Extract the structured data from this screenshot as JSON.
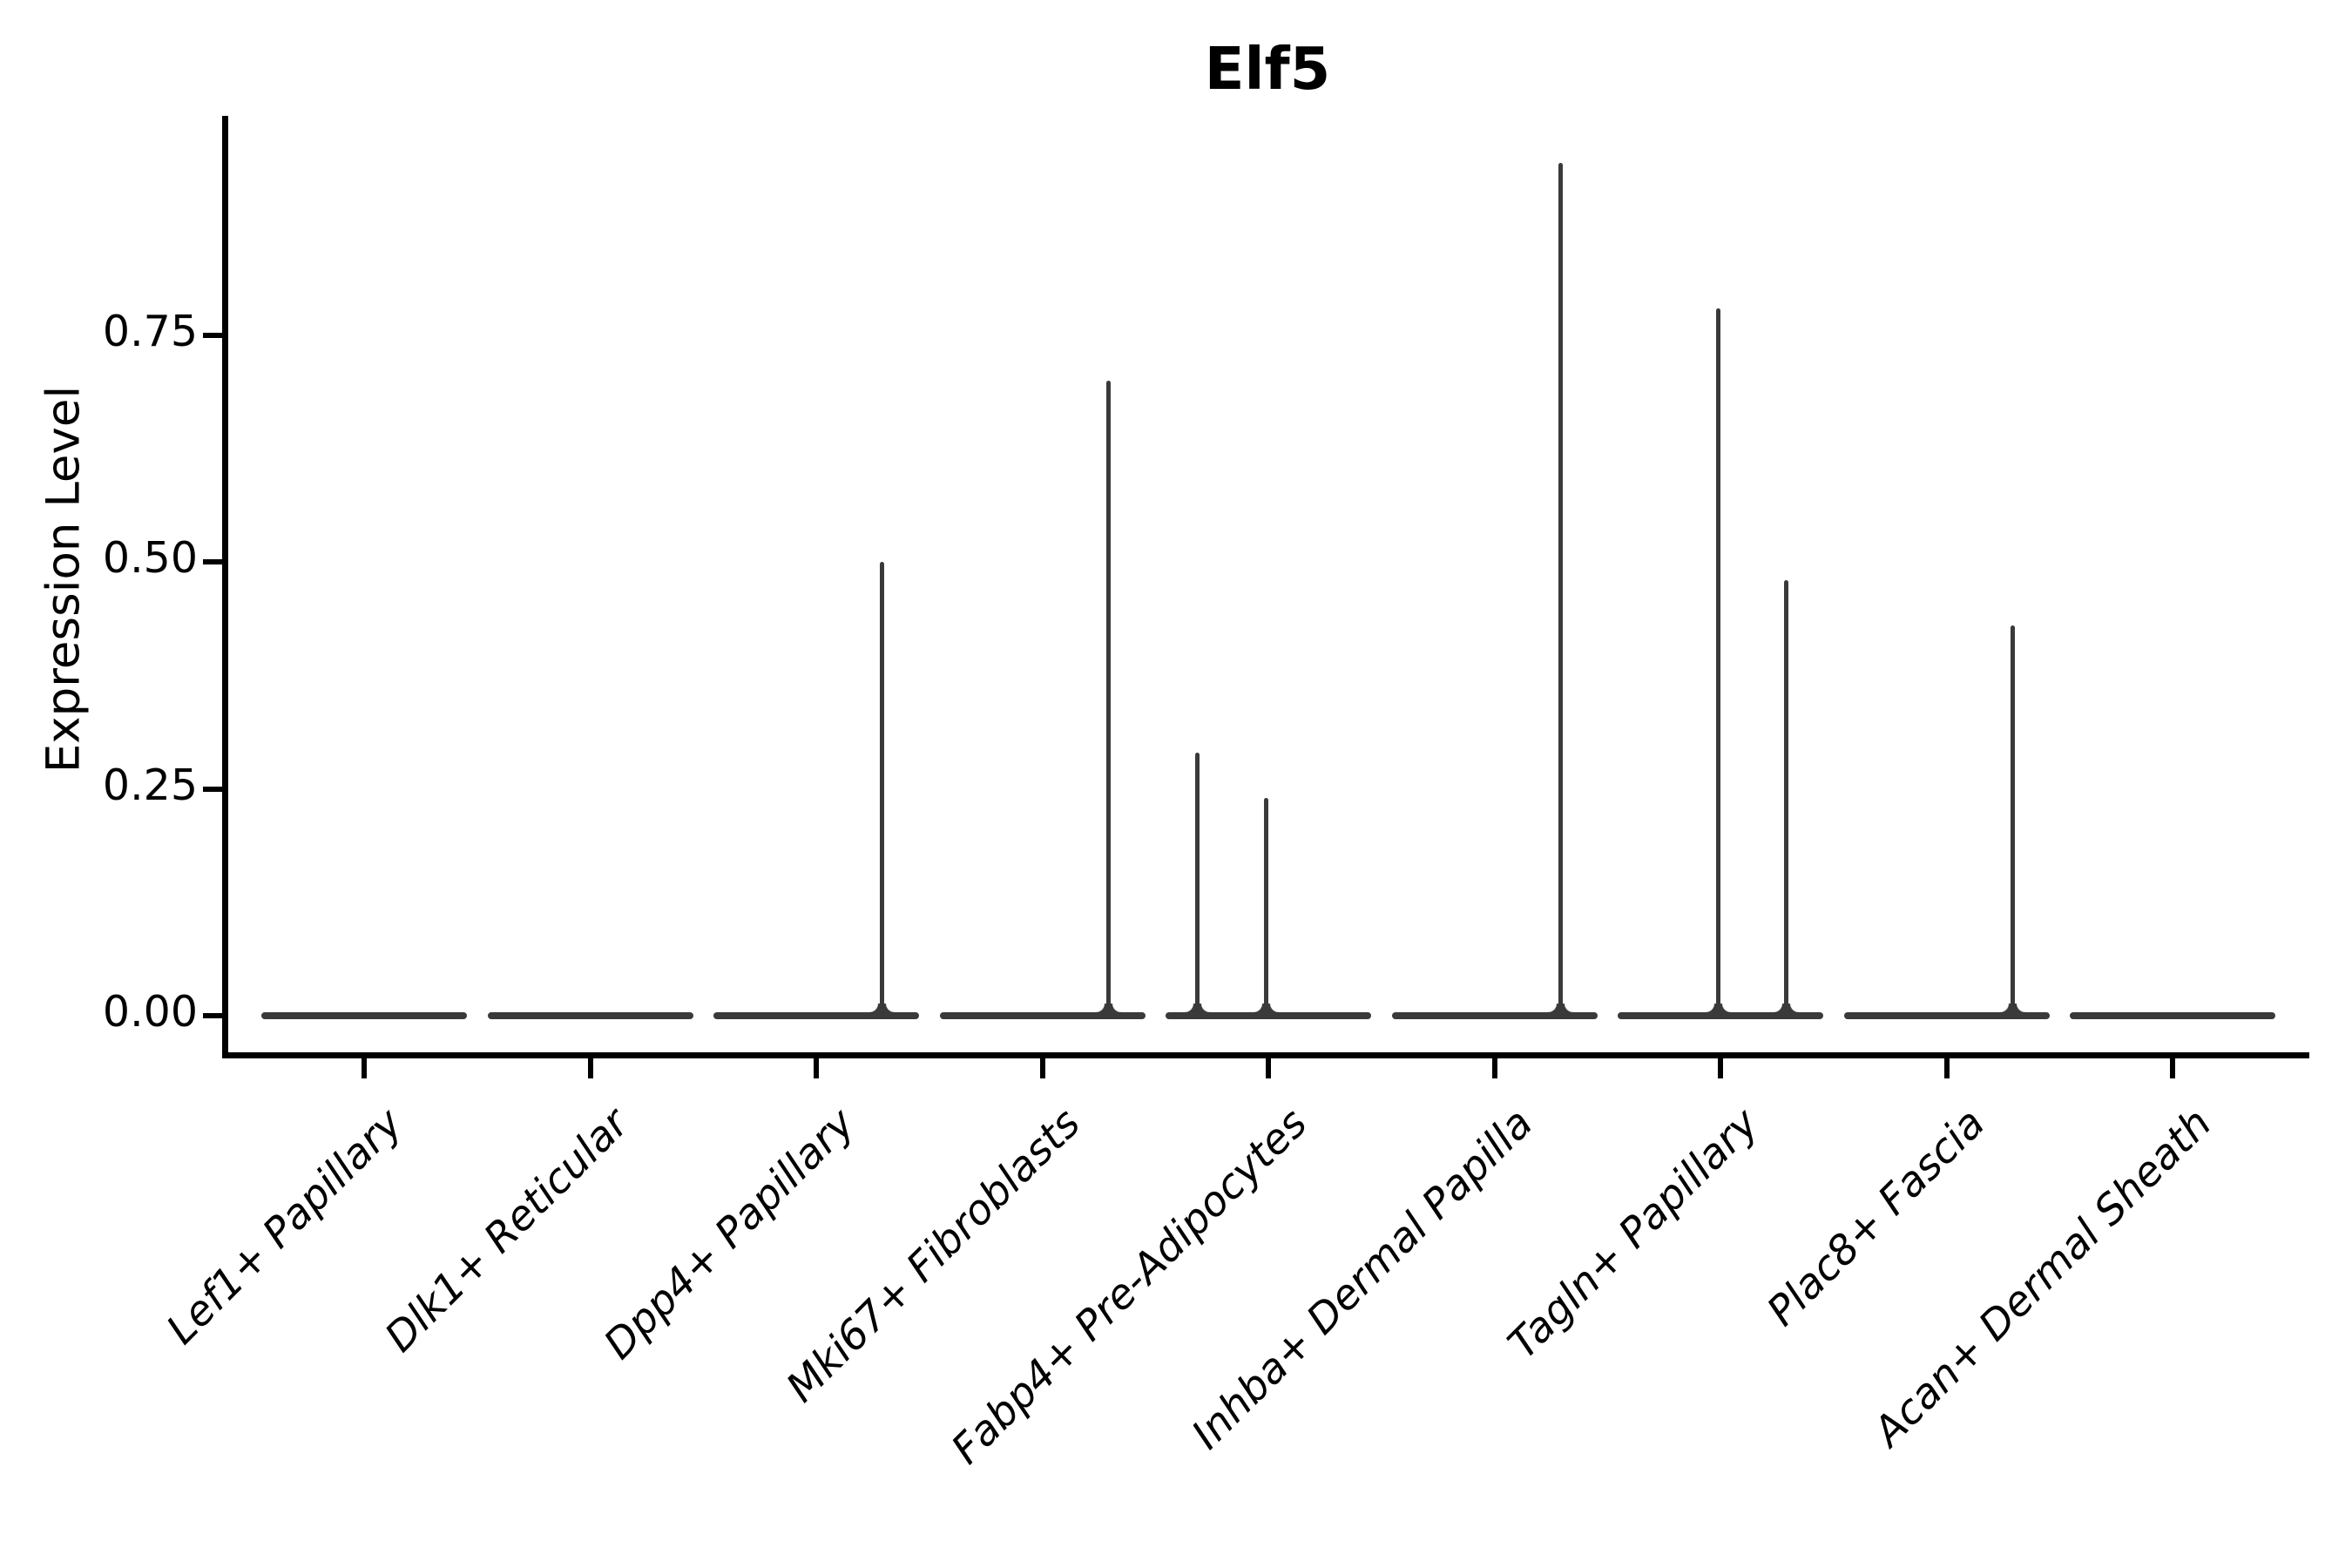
{
  "title": "Elf5",
  "y_axis": {
    "label": "Expression Level",
    "ticks": [
      {
        "label": "0.00",
        "value": 0.0
      },
      {
        "label": "0.25",
        "value": 0.25
      },
      {
        "label": "0.50",
        "value": 0.5
      },
      {
        "label": "0.75",
        "value": 0.75
      }
    ]
  },
  "x_axis": {
    "categories": [
      "Lef1+ Papillary",
      "Dlk1+ Reticular",
      "Dpp4+ Papillary",
      "Mki67+ Fibroblasts",
      "Fabp4+ Pre-Adipocytes",
      "Inhba+ Dermal Papilla",
      "Tagln+ Papillary",
      "Plac8+ Fascia",
      "Acan+ Dermal Sheath"
    ]
  },
  "chart_data": {
    "type": "violin",
    "title": "Elf5",
    "xlabel": "",
    "ylabel": "Expression Level",
    "ylim": [
      -0.04,
      0.99
    ],
    "yticks": [
      0.0,
      0.25,
      0.5,
      0.75
    ],
    "grid": false,
    "legend": false,
    "categories": [
      "Lef1+ Papillary",
      "Dlk1+ Reticular",
      "Dpp4+ Papillary",
      "Mki67+ Fibroblasts",
      "Fabp4+ Pre-Adipocytes",
      "Inhba+ Dermal Papilla",
      "Tagln+ Papillary",
      "Plac8+ Fascia",
      "Acan+ Dermal Sheath"
    ],
    "violins": [
      {
        "category": "Lef1+ Papillary",
        "baseline_value": 0.0,
        "spikes": []
      },
      {
        "category": "Dlk1+ Reticular",
        "baseline_value": 0.0,
        "spikes": []
      },
      {
        "category": "Dpp4+ Papillary",
        "baseline_value": 0.0,
        "spikes": [
          {
            "value": 0.5,
            "x_jitter": 0.64
          }
        ]
      },
      {
        "category": "Mki67+ Fibroblasts",
        "baseline_value": 0.0,
        "spikes": [
          {
            "value": 0.7,
            "x_jitter": 0.64
          }
        ]
      },
      {
        "category": "Fabp4+ Pre-Adipocytes",
        "baseline_value": 0.0,
        "spikes": [
          {
            "value": 0.29,
            "x_jitter": -0.69
          },
          {
            "value": 0.24,
            "x_jitter": -0.02
          }
        ]
      },
      {
        "category": "Inhba+ Dermal Papilla",
        "baseline_value": 0.0,
        "spikes": [
          {
            "value": 0.94,
            "x_jitter": 0.64
          }
        ]
      },
      {
        "category": "Tagln+ Papillary",
        "baseline_value": 0.0,
        "spikes": [
          {
            "value": 0.78,
            "x_jitter": -0.02
          },
          {
            "value": 0.48,
            "x_jitter": 0.64
          }
        ]
      },
      {
        "category": "Plac8+ Fascia",
        "baseline_value": 0.0,
        "spikes": [
          {
            "value": 0.43,
            "x_jitter": 0.64
          }
        ]
      },
      {
        "category": "Acan+ Dermal Sheath",
        "baseline_value": 0.0,
        "spikes": []
      }
    ]
  },
  "colors": {
    "axis": "#000000",
    "text": "#000000",
    "violin": "#3a3a3a",
    "background": "#ffffff"
  }
}
